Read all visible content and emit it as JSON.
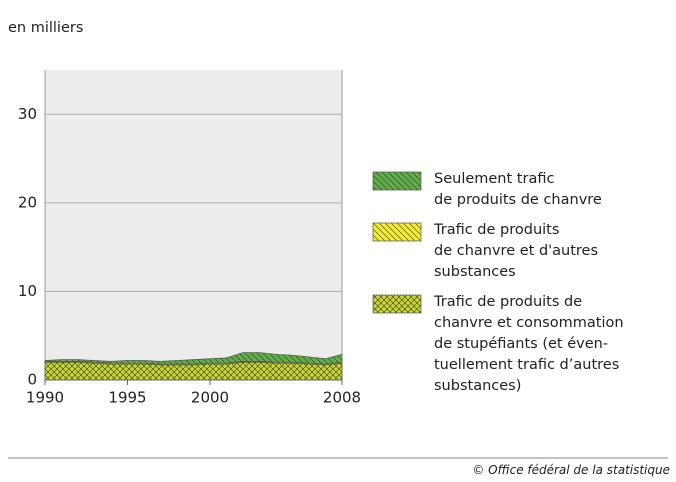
{
  "chart_data": {
    "type": "stacked-area",
    "y_label": "en milliers",
    "source": "© Office fédéral de la statistique",
    "x": [
      1990,
      1991,
      1992,
      1993,
      1994,
      1995,
      1996,
      1997,
      1998,
      1999,
      2000,
      2001,
      2002,
      2003,
      2004,
      2005,
      2006,
      2007,
      2008
    ],
    "xlim": [
      1990,
      2008
    ],
    "xticks": [
      1990,
      1995,
      2000,
      2008
    ],
    "ylim": [
      0,
      35
    ],
    "yticks": [
      0,
      10,
      20,
      30
    ],
    "grid": true,
    "series": [
      {
        "name": "Trafic de produits de\nchanvre et consommation\nde stupéfiants (et éven-\ntuellement trafic d’autres\nsubstances)",
        "color": "#c8d82c",
        "hatch": "cross",
        "values": [
          2.0,
          2.0,
          2.0,
          1.9,
          1.8,
          1.8,
          1.8,
          1.7,
          1.7,
          1.7,
          1.8,
          1.8,
          2.0,
          2.0,
          1.9,
          1.9,
          1.8,
          1.7,
          1.9
        ]
      },
      {
        "name": "Trafic de produits\nde chanvre et d'autres\nsubstances",
        "color": "#f5ec2a",
        "hatch": "back",
        "values": [
          0.1,
          0.1,
          0.1,
          0.1,
          0.1,
          0.1,
          0.1,
          0.1,
          0.1,
          0.1,
          0.1,
          0.1,
          0.1,
          0.1,
          0.1,
          0.1,
          0.1,
          0.1,
          0.1
        ]
      },
      {
        "name": "Seulement trafic\nde produits de chanvre",
        "color": "#5fae46",
        "hatch": "back",
        "values": [
          0.1,
          0.2,
          0.2,
          0.2,
          0.2,
          0.3,
          0.3,
          0.3,
          0.4,
          0.5,
          0.5,
          0.6,
          1.0,
          1.0,
          0.9,
          0.8,
          0.7,
          0.6,
          0.9
        ]
      }
    ]
  }
}
